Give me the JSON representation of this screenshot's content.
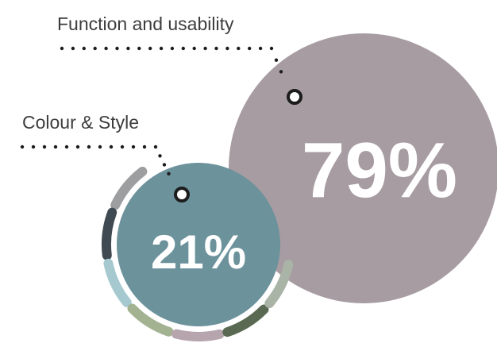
{
  "chart_data": {
    "type": "bubble",
    "title": "",
    "categories": [
      "Function and usability",
      "Colour & Style"
    ],
    "values": [
      79,
      21
    ],
    "unit": "%",
    "labels": {
      "function": "Function and usability",
      "colour": "Colour & Style"
    },
    "value_labels": {
      "function": "79%",
      "colour": "21%"
    },
    "colors": {
      "function": "#a79ca2",
      "colour": "#6c929c",
      "dots": "#1c1c1c",
      "text": "#3d3d3d"
    },
    "ring_segment_colors": [
      "#9d9ea0",
      "#3f4a52",
      "#a6c9d0",
      "#a3b392",
      "#b7a5ae",
      "#5a6a52",
      "#a9b3a6"
    ]
  }
}
